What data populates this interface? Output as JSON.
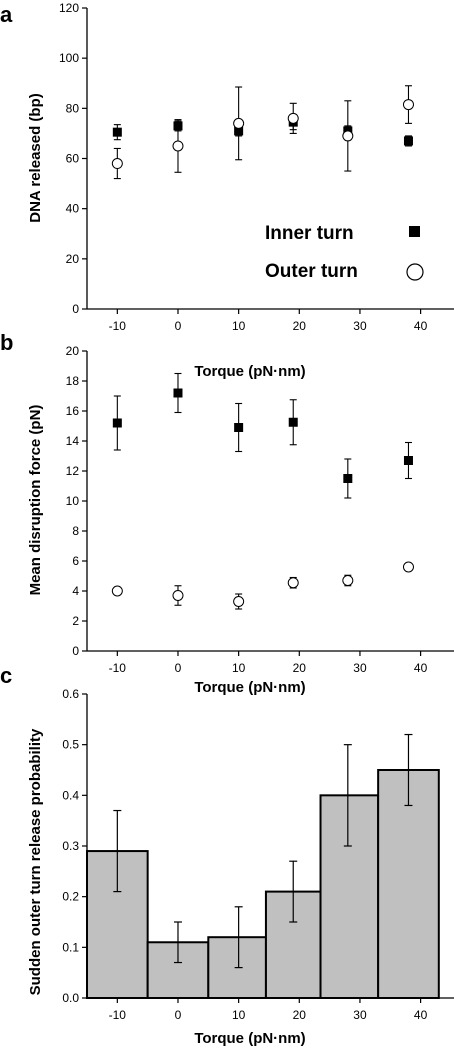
{
  "chart_data": [
    {
      "type": "scatter",
      "panel": "a",
      "xlabel": "Torque (pN·nm)",
      "ylabel": "DNA released (bp)",
      "xlim": [
        -15,
        46
      ],
      "ylim": [
        0,
        120
      ],
      "xticks": [
        -10,
        0,
        10,
        20,
        30,
        40
      ],
      "yticks": [
        0,
        20,
        40,
        60,
        80,
        100,
        120
      ],
      "legend_placement": "bottom-right",
      "series": [
        {
          "name": "Inner turn",
          "marker": "filled-square",
          "points": [
            {
              "x": -10,
              "y": 70.5,
              "err_low": 3,
              "err_high": 3
            },
            {
              "x": 0,
              "y": 73,
              "err_low": 2,
              "err_high": 2
            },
            {
              "x": 10,
              "y": 71,
              "err_low": 2,
              "err_high": 2
            },
            {
              "x": 19,
              "y": 74.5,
              "err_low": 3,
              "err_high": 3
            },
            {
              "x": 28,
              "y": 71,
              "err_low": 2,
              "err_high": 2
            },
            {
              "x": 38,
              "y": 67,
              "err_low": 2,
              "err_high": 2
            }
          ]
        },
        {
          "name": "Outer turn",
          "marker": "open-circle",
          "points": [
            {
              "x": -10,
              "y": 58,
              "err_low": 6,
              "err_high": 6
            },
            {
              "x": 0,
              "y": 65,
              "err_low": 10.5,
              "err_high": 10.5
            },
            {
              "x": 10,
              "y": 74,
              "err_low": 14.5,
              "err_high": 14.5
            },
            {
              "x": 19,
              "y": 76,
              "err_low": 6,
              "err_high": 6
            },
            {
              "x": 28,
              "y": 69,
              "err_low": 14,
              "err_high": 14
            },
            {
              "x": 38,
              "y": 81.5,
              "err_low": 7.5,
              "err_high": 7.5
            }
          ]
        }
      ]
    },
    {
      "type": "scatter",
      "panel": "b",
      "xlabel": "Torque (pN·nm)",
      "ylabel": "Mean disruption force (pN)",
      "xlim": [
        -15,
        46
      ],
      "ylim": [
        0,
        20
      ],
      "xticks": [
        -10,
        0,
        10,
        20,
        30,
        40
      ],
      "yticks": [
        0,
        2,
        4,
        6,
        8,
        10,
        12,
        14,
        16,
        18,
        20
      ],
      "series": [
        {
          "name": "",
          "marker": "filled-square",
          "points": [
            {
              "x": -10,
              "y": 15.2,
              "err_low": 1.8,
              "err_high": 1.8
            },
            {
              "x": 0,
              "y": 17.2,
              "err_low": 1.3,
              "err_high": 1.3
            },
            {
              "x": 10,
              "y": 14.9,
              "err_low": 1.6,
              "err_high": 1.6
            },
            {
              "x": 19,
              "y": 15.25,
              "err_low": 1.5,
              "err_high": 1.5
            },
            {
              "x": 28,
              "y": 11.5,
              "err_low": 1.3,
              "err_high": 1.3
            },
            {
              "x": 38,
              "y": 12.7,
              "err_low": 1.2,
              "err_high": 1.2
            }
          ]
        },
        {
          "name": "",
          "marker": "open-circle",
          "points": [
            {
              "x": -10,
              "y": 4.0,
              "err_low": 0.2,
              "err_high": 0.2
            },
            {
              "x": 0,
              "y": 3.7,
              "err_low": 0.65,
              "err_high": 0.65
            },
            {
              "x": 10,
              "y": 3.3,
              "err_low": 0.5,
              "err_high": 0.5
            },
            {
              "x": 19,
              "y": 4.55,
              "err_low": 0.35,
              "err_high": 0.35
            },
            {
              "x": 28,
              "y": 4.7,
              "err_low": 0.35,
              "err_high": 0.35
            },
            {
              "x": 38,
              "y": 5.6,
              "err_low": 0.15,
              "err_high": 0.15
            }
          ]
        }
      ]
    },
    {
      "type": "bar",
      "panel": "c",
      "xlabel": "Torque (pN·nm)",
      "ylabel": "Sudden outer turn release probability",
      "xlim": [
        -15,
        46
      ],
      "ylim": [
        0,
        0.6
      ],
      "xticks": [
        -10,
        0,
        10,
        20,
        30,
        40
      ],
      "yticks": [
        "0.0",
        "0.1",
        "0.2",
        "0.3",
        "0.4",
        "0.5",
        "0.6"
      ],
      "bar_color": "#c0c0c0",
      "bars": [
        {
          "x_from": -15,
          "x_to": -5,
          "center": -10,
          "value": 0.29,
          "err_low": 0.08,
          "err_high": 0.08
        },
        {
          "x_from": -5,
          "x_to": 5,
          "center": 0,
          "value": 0.11,
          "err_low": 0.04,
          "err_high": 0.04
        },
        {
          "x_from": 5,
          "x_to": 14.5,
          "center": 10,
          "value": 0.12,
          "err_low": 0.06,
          "err_high": 0.06
        },
        {
          "x_from": 14.5,
          "x_to": 23.5,
          "center": 19,
          "value": 0.21,
          "err_low": 0.06,
          "err_high": 0.06
        },
        {
          "x_from": 23.5,
          "x_to": 33,
          "center": 28,
          "value": 0.4,
          "err_low": 0.1,
          "err_high": 0.1
        },
        {
          "x_from": 33,
          "x_to": 43,
          "center": 38,
          "value": 0.45,
          "err_low": 0.07,
          "err_high": 0.07
        }
      ]
    }
  ]
}
